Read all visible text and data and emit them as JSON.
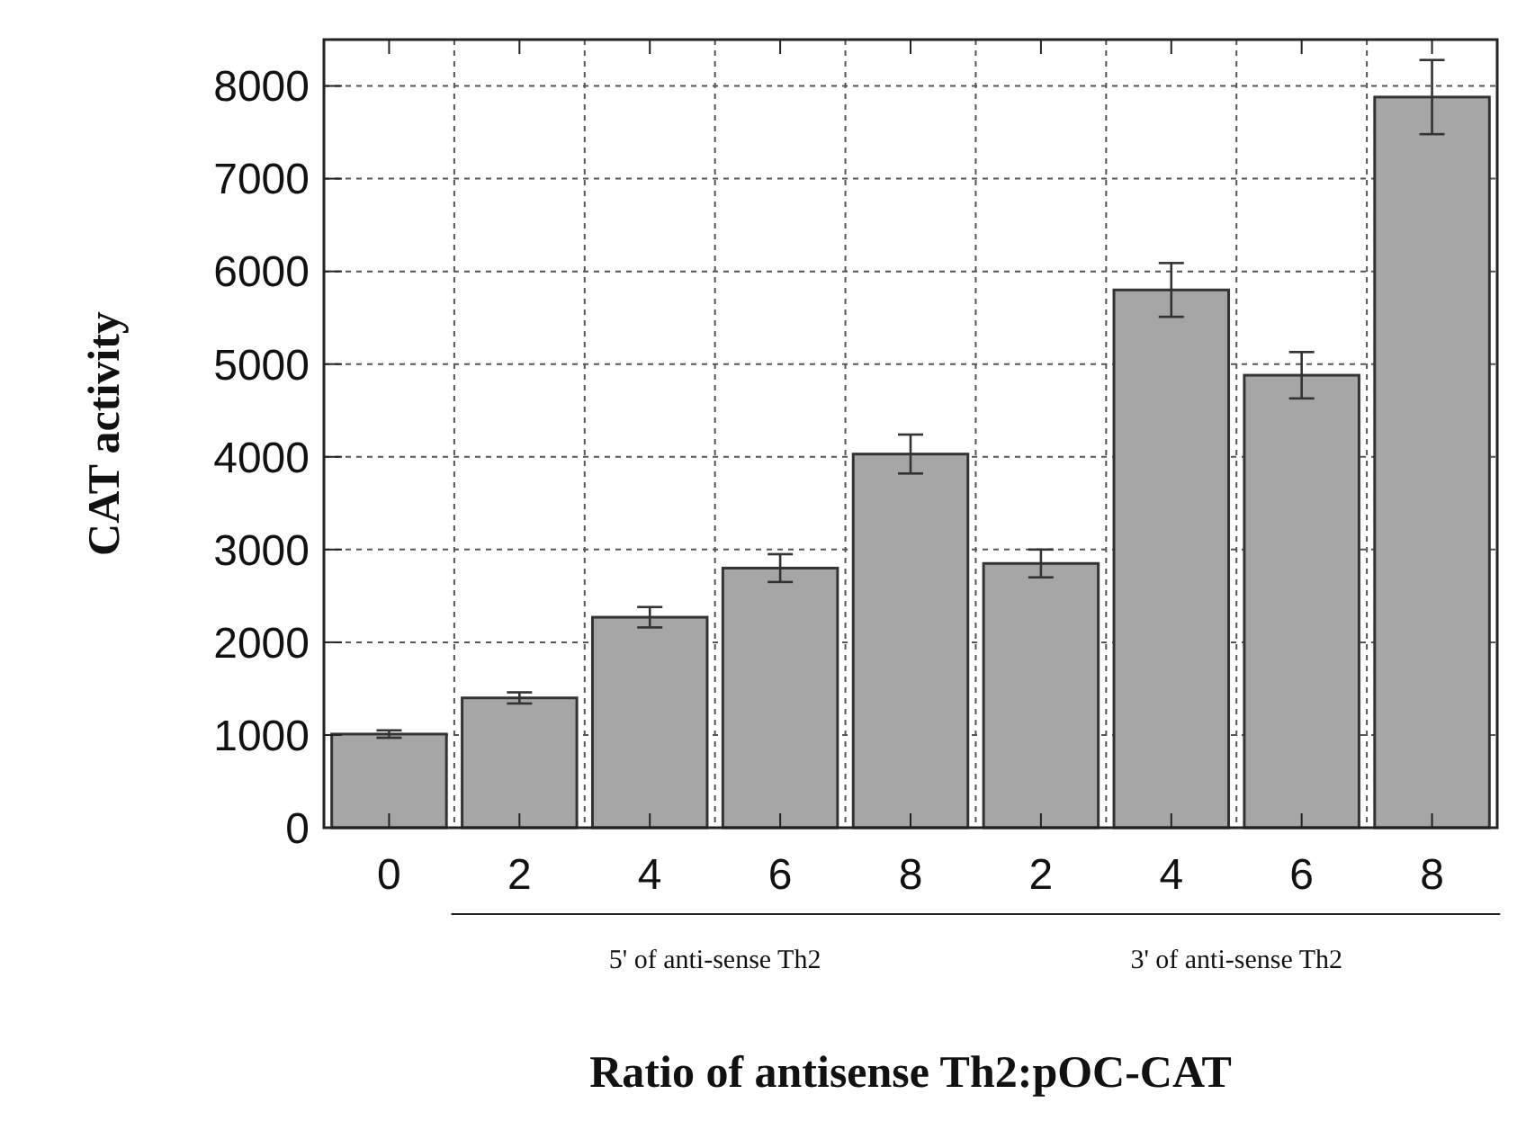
{
  "chart_data": {
    "type": "bar",
    "xlabel": "Ratio of antisense Th2:pOC-CAT",
    "ylabel": "CAT activity",
    "categories": [
      "0",
      "2",
      "4",
      "6",
      "8",
      "2",
      "4",
      "6",
      "8"
    ],
    "values": [
      1010,
      1400,
      2270,
      2800,
      4030,
      2850,
      5800,
      4880,
      7880
    ],
    "errors": [
      40,
      60,
      110,
      150,
      210,
      150,
      290,
      250,
      400
    ],
    "color": "#a6a6a6",
    "ylim": [
      0,
      8500
    ],
    "yticks": [
      0,
      1000,
      2000,
      3000,
      4000,
      5000,
      6000,
      7000,
      8000
    ],
    "grid": true,
    "annotations": [
      "5' of anti-sense Th2",
      "3' of anti-sense Th2"
    ]
  }
}
